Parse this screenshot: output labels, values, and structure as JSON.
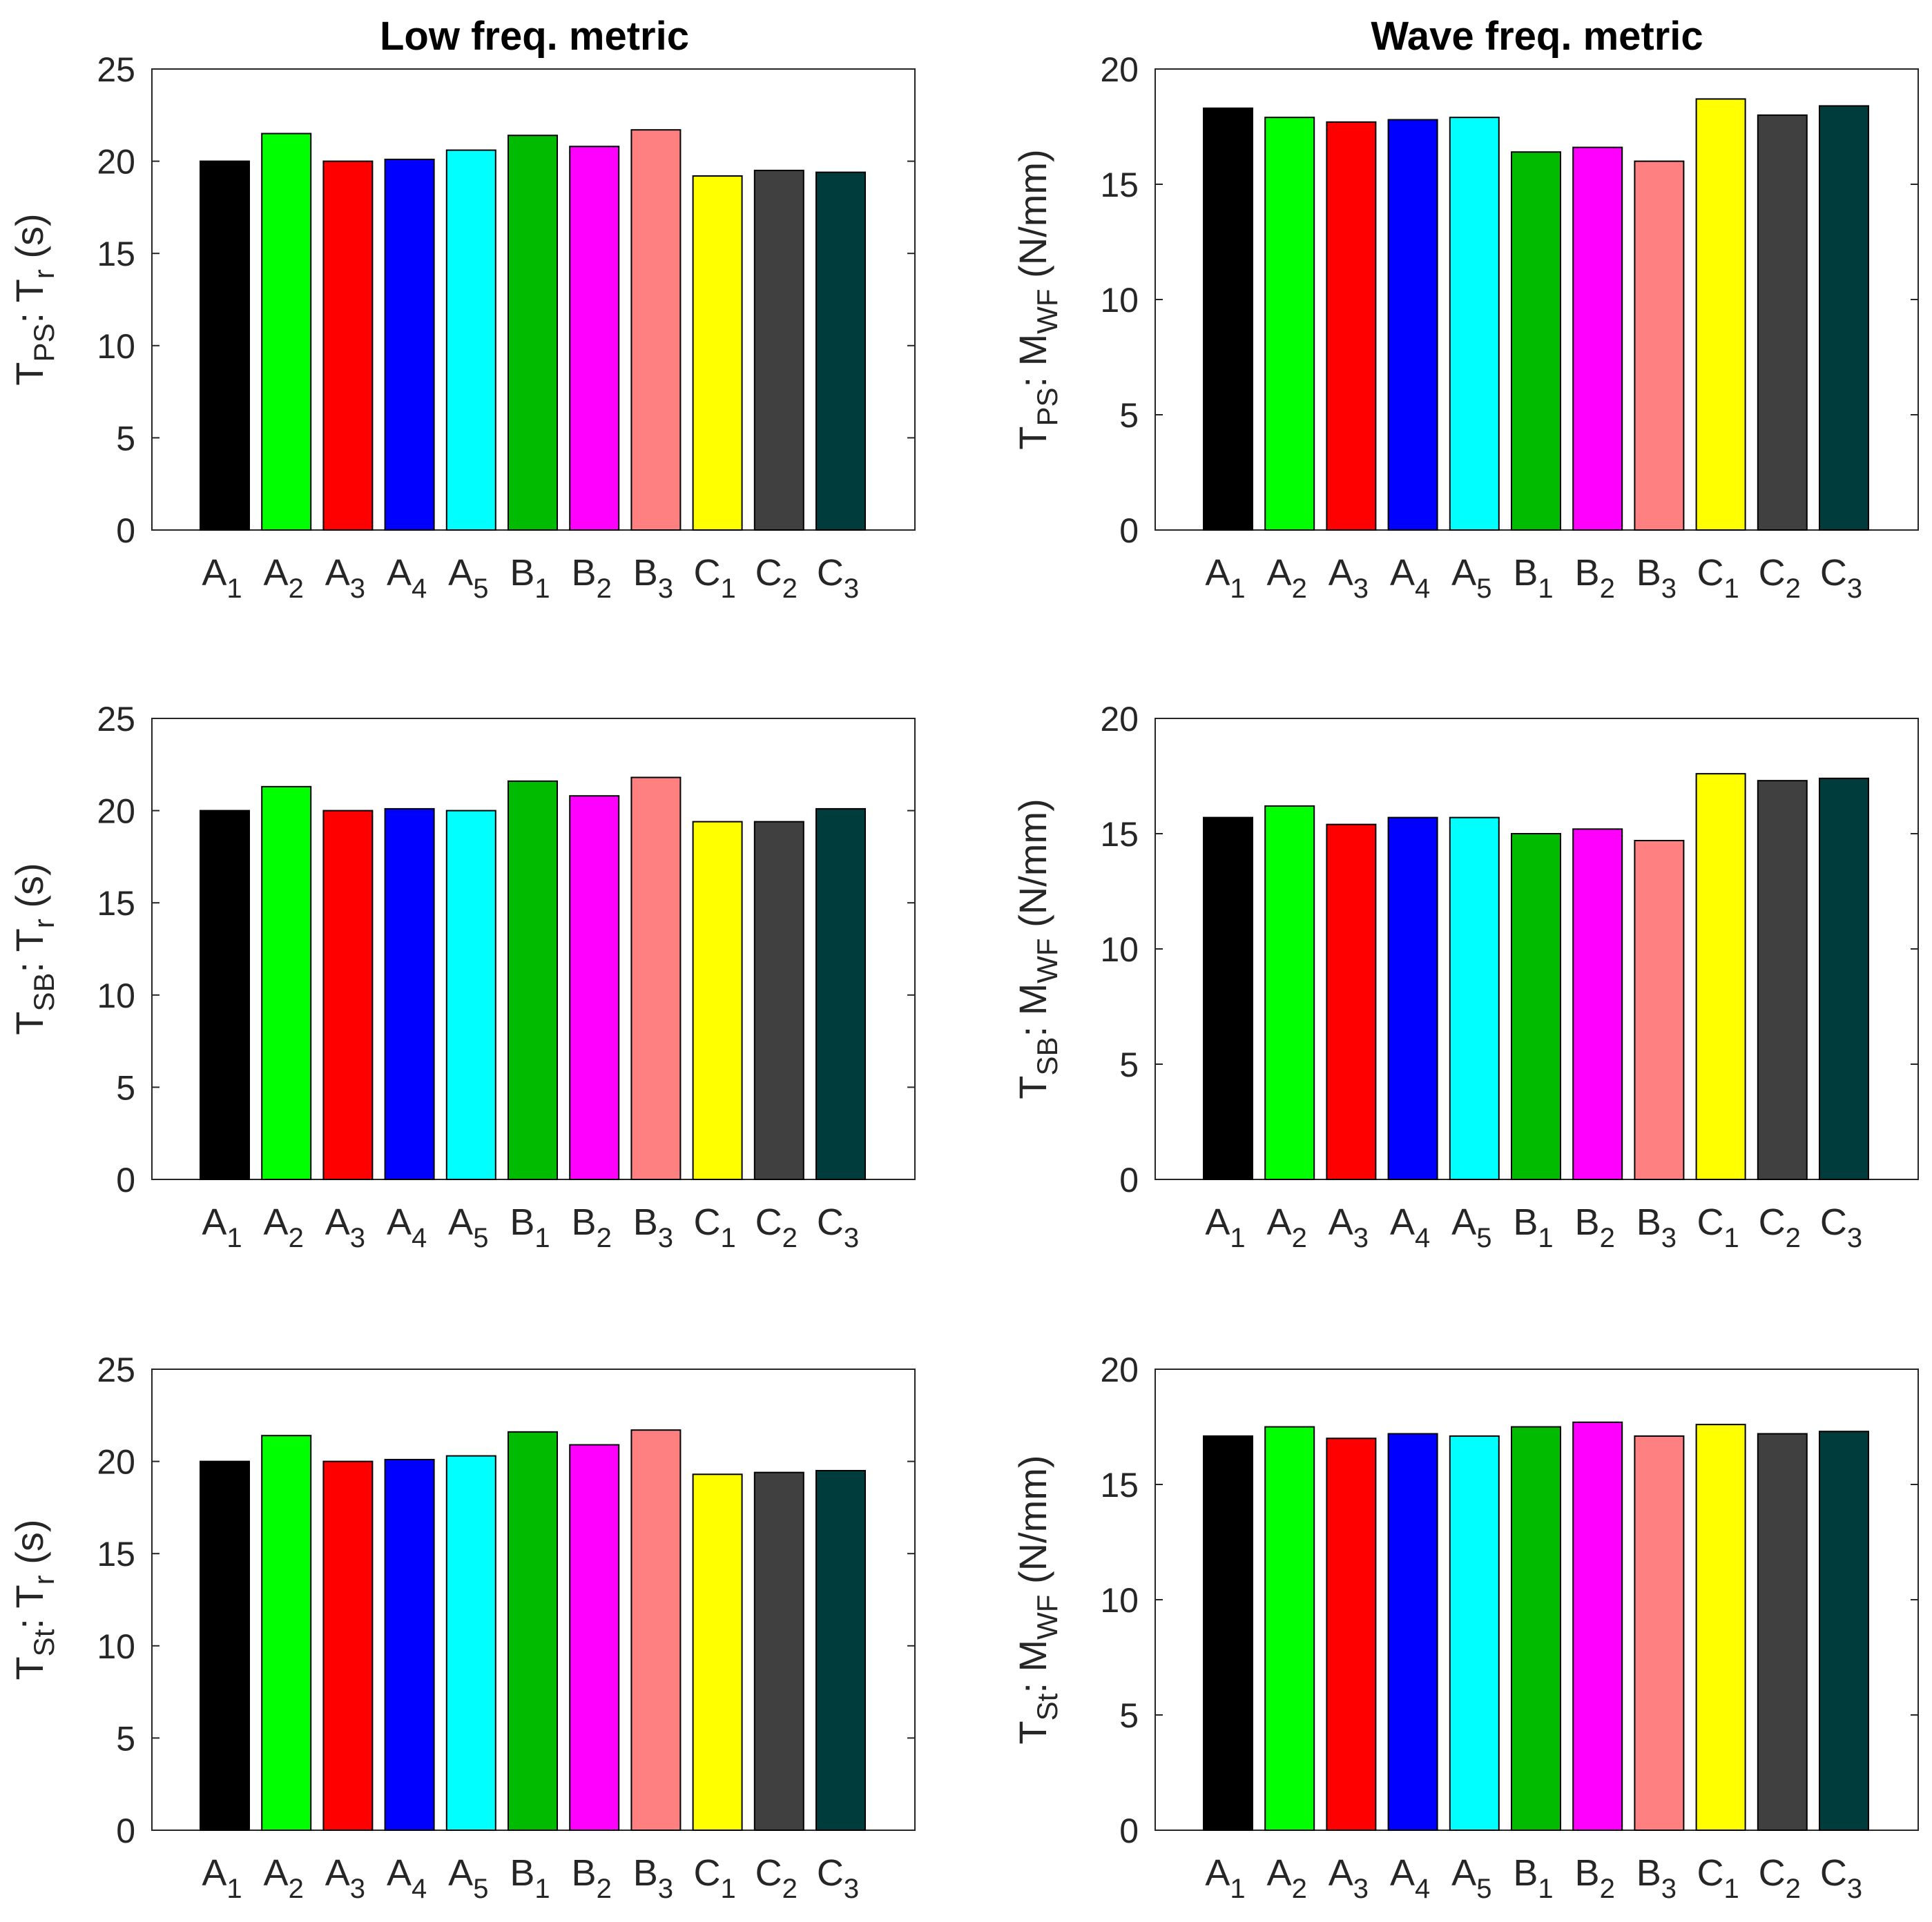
{
  "figure": {
    "col_titles": [
      "Low freq. metric",
      "Wave freq. metric"
    ]
  },
  "colors": [
    "#000000",
    "#00ff00",
    "#ff0000",
    "#0000ff",
    "#00ffff",
    "#00bb00",
    "#ff00ff",
    "#ff8080",
    "#ffff00",
    "#404040",
    "#003c3c"
  ],
  "chart_data": [
    {
      "type": "bar",
      "row": 0,
      "col": 0,
      "title": "Low freq. metric",
      "categories": [
        {
          "main": "A",
          "sub": "1"
        },
        {
          "main": "A",
          "sub": "2"
        },
        {
          "main": "A",
          "sub": "3"
        },
        {
          "main": "A",
          "sub": "4"
        },
        {
          "main": "A",
          "sub": "5"
        },
        {
          "main": "B",
          "sub": "1"
        },
        {
          "main": "B",
          "sub": "2"
        },
        {
          "main": "B",
          "sub": "3"
        },
        {
          "main": "C",
          "sub": "1"
        },
        {
          "main": "C",
          "sub": "2"
        },
        {
          "main": "C",
          "sub": "3"
        }
      ],
      "values": [
        20.0,
        21.5,
        20.0,
        20.1,
        20.6,
        21.4,
        20.8,
        21.7,
        19.2,
        19.5,
        19.4
      ],
      "ylabel": [
        {
          "t": "T"
        },
        {
          "t": "PS",
          "sub": true
        },
        {
          "t": ": T"
        },
        {
          "t": "r",
          "sub": true
        },
        {
          "t": " (s)"
        }
      ],
      "ylim": [
        0,
        25
      ],
      "yticks": [
        0,
        5,
        10,
        15,
        20,
        25
      ]
    },
    {
      "type": "bar",
      "row": 0,
      "col": 1,
      "title": "Wave freq. metric",
      "categories": [
        {
          "main": "A",
          "sub": "1"
        },
        {
          "main": "A",
          "sub": "2"
        },
        {
          "main": "A",
          "sub": "3"
        },
        {
          "main": "A",
          "sub": "4"
        },
        {
          "main": "A",
          "sub": "5"
        },
        {
          "main": "B",
          "sub": "1"
        },
        {
          "main": "B",
          "sub": "2"
        },
        {
          "main": "B",
          "sub": "3"
        },
        {
          "main": "C",
          "sub": "1"
        },
        {
          "main": "C",
          "sub": "2"
        },
        {
          "main": "C",
          "sub": "3"
        }
      ],
      "values": [
        18.3,
        17.9,
        17.7,
        17.8,
        17.9,
        16.4,
        16.6,
        16.0,
        18.7,
        18.0,
        18.4
      ],
      "ylabel": [
        {
          "t": "T"
        },
        {
          "t": "PS",
          "sub": true
        },
        {
          "t": ": M"
        },
        {
          "t": "WF",
          "sub": true
        },
        {
          "t": " (N/mm)"
        }
      ],
      "ylim": [
        0,
        20
      ],
      "yticks": [
        0,
        5,
        10,
        15,
        20
      ]
    },
    {
      "type": "bar",
      "row": 1,
      "col": 0,
      "categories": [
        {
          "main": "A",
          "sub": "1"
        },
        {
          "main": "A",
          "sub": "2"
        },
        {
          "main": "A",
          "sub": "3"
        },
        {
          "main": "A",
          "sub": "4"
        },
        {
          "main": "A",
          "sub": "5"
        },
        {
          "main": "B",
          "sub": "1"
        },
        {
          "main": "B",
          "sub": "2"
        },
        {
          "main": "B",
          "sub": "3"
        },
        {
          "main": "C",
          "sub": "1"
        },
        {
          "main": "C",
          "sub": "2"
        },
        {
          "main": "C",
          "sub": "3"
        }
      ],
      "values": [
        20.0,
        21.3,
        20.0,
        20.1,
        20.0,
        21.6,
        20.8,
        21.8,
        19.4,
        19.4,
        20.1
      ],
      "ylabel": [
        {
          "t": "T"
        },
        {
          "t": "SB",
          "sub": true
        },
        {
          "t": ": T"
        },
        {
          "t": "r",
          "sub": true
        },
        {
          "t": " (s)"
        }
      ],
      "ylim": [
        0,
        25
      ],
      "yticks": [
        0,
        5,
        10,
        15,
        20,
        25
      ]
    },
    {
      "type": "bar",
      "row": 1,
      "col": 1,
      "categories": [
        {
          "main": "A",
          "sub": "1"
        },
        {
          "main": "A",
          "sub": "2"
        },
        {
          "main": "A",
          "sub": "3"
        },
        {
          "main": "A",
          "sub": "4"
        },
        {
          "main": "A",
          "sub": "5"
        },
        {
          "main": "B",
          "sub": "1"
        },
        {
          "main": "B",
          "sub": "2"
        },
        {
          "main": "B",
          "sub": "3"
        },
        {
          "main": "C",
          "sub": "1"
        },
        {
          "main": "C",
          "sub": "2"
        },
        {
          "main": "C",
          "sub": "3"
        }
      ],
      "values": [
        15.7,
        16.2,
        15.4,
        15.7,
        15.7,
        15.0,
        15.2,
        14.7,
        17.6,
        17.3,
        17.4
      ],
      "ylabel": [
        {
          "t": "T"
        },
        {
          "t": "SB",
          "sub": true
        },
        {
          "t": ": M"
        },
        {
          "t": "WF",
          "sub": true
        },
        {
          "t": " (N/mm)"
        }
      ],
      "ylim": [
        0,
        20
      ],
      "yticks": [
        0,
        5,
        10,
        15,
        20
      ]
    },
    {
      "type": "bar",
      "row": 2,
      "col": 0,
      "categories": [
        {
          "main": "A",
          "sub": "1"
        },
        {
          "main": "A",
          "sub": "2"
        },
        {
          "main": "A",
          "sub": "3"
        },
        {
          "main": "A",
          "sub": "4"
        },
        {
          "main": "A",
          "sub": "5"
        },
        {
          "main": "B",
          "sub": "1"
        },
        {
          "main": "B",
          "sub": "2"
        },
        {
          "main": "B",
          "sub": "3"
        },
        {
          "main": "C",
          "sub": "1"
        },
        {
          "main": "C",
          "sub": "2"
        },
        {
          "main": "C",
          "sub": "3"
        }
      ],
      "values": [
        20.0,
        21.4,
        20.0,
        20.1,
        20.3,
        21.6,
        20.9,
        21.7,
        19.3,
        19.4,
        19.5
      ],
      "ylabel": [
        {
          "t": "T"
        },
        {
          "t": "St",
          "sub": true
        },
        {
          "t": ": T"
        },
        {
          "t": "r",
          "sub": true
        },
        {
          "t": " (s)"
        }
      ],
      "ylim": [
        0,
        25
      ],
      "yticks": [
        0,
        5,
        10,
        15,
        20,
        25
      ]
    },
    {
      "type": "bar",
      "row": 2,
      "col": 1,
      "categories": [
        {
          "main": "A",
          "sub": "1"
        },
        {
          "main": "A",
          "sub": "2"
        },
        {
          "main": "A",
          "sub": "3"
        },
        {
          "main": "A",
          "sub": "4"
        },
        {
          "main": "A",
          "sub": "5"
        },
        {
          "main": "B",
          "sub": "1"
        },
        {
          "main": "B",
          "sub": "2"
        },
        {
          "main": "B",
          "sub": "3"
        },
        {
          "main": "C",
          "sub": "1"
        },
        {
          "main": "C",
          "sub": "2"
        },
        {
          "main": "C",
          "sub": "3"
        }
      ],
      "values": [
        17.1,
        17.5,
        17.0,
        17.2,
        17.1,
        17.5,
        17.7,
        17.1,
        17.6,
        17.2,
        17.3
      ],
      "ylabel": [
        {
          "t": "T"
        },
        {
          "t": "St",
          "sub": true
        },
        {
          "t": ": M"
        },
        {
          "t": "WF",
          "sub": true
        },
        {
          "t": " (N/mm)"
        }
      ],
      "ylim": [
        0,
        20
      ],
      "yticks": [
        0,
        5,
        10,
        15,
        20
      ]
    }
  ]
}
